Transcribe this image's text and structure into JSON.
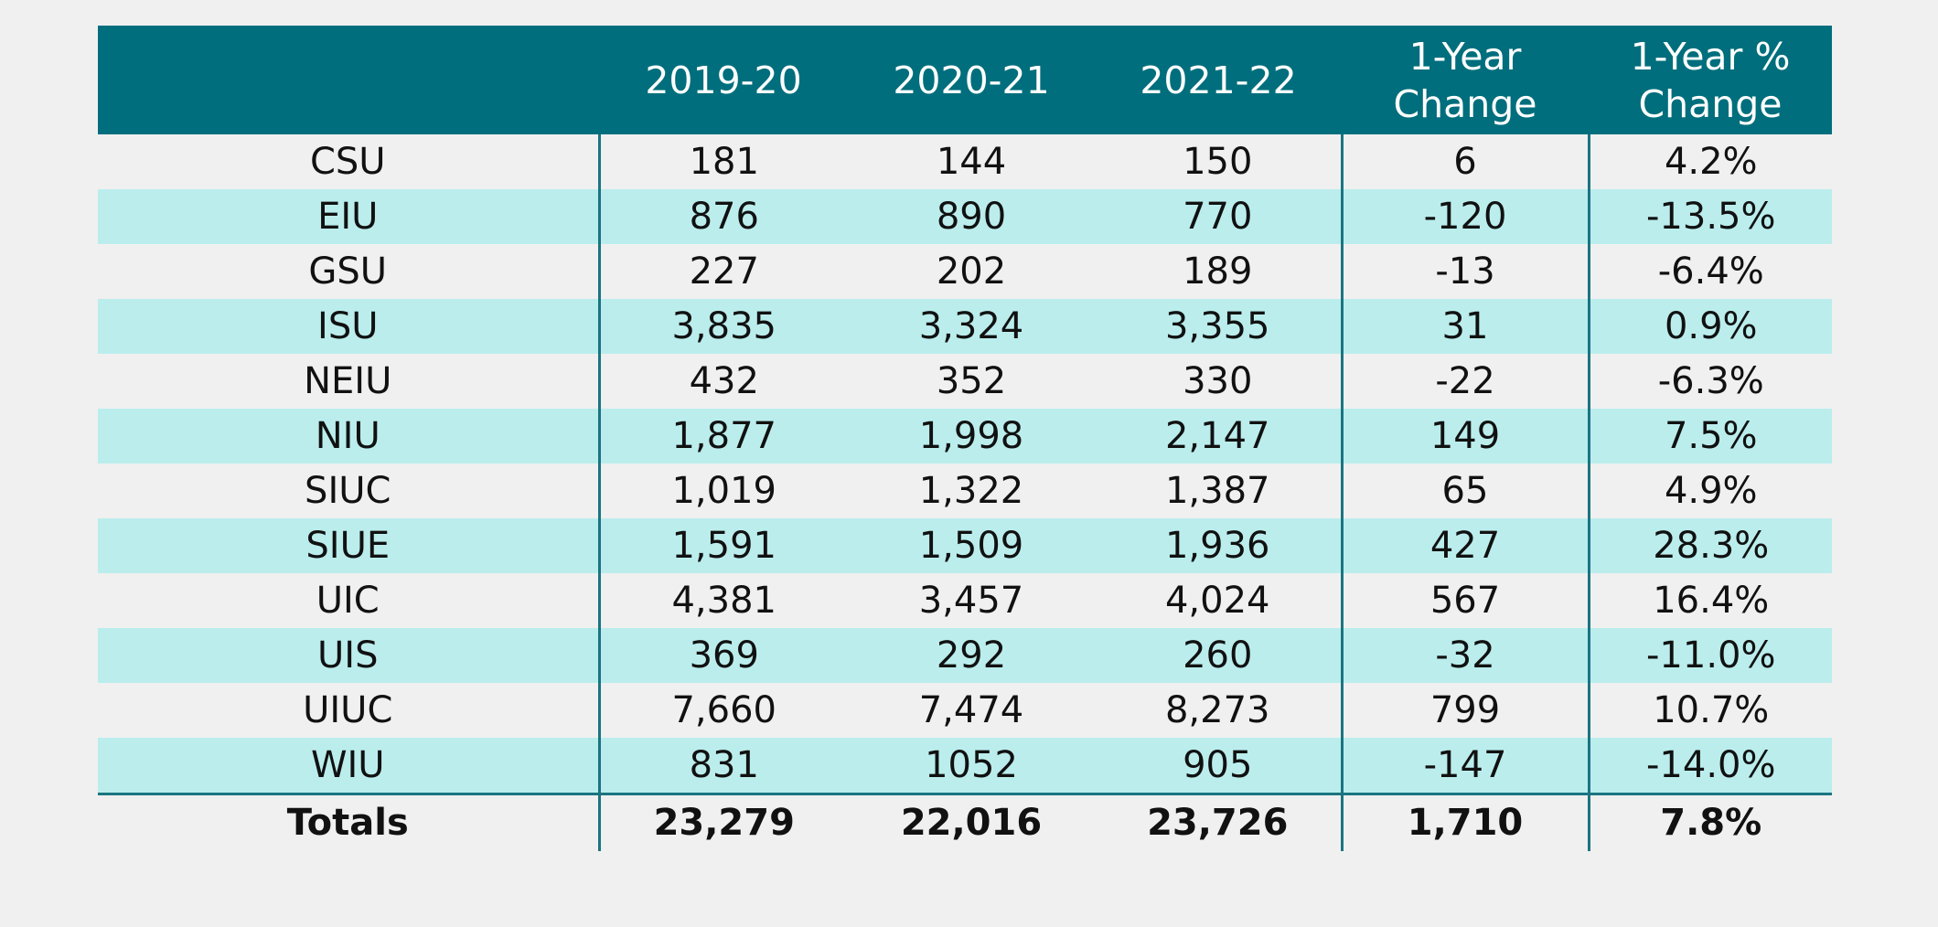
{
  "table": {
    "headers": [
      "",
      "2019-20",
      "2020-21",
      "2021-22",
      "1-Year Change",
      "1-Year % Change"
    ],
    "header_lines": {
      "change": [
        "1-Year",
        "Change"
      ],
      "pct_change": [
        "1-Year %",
        "Change"
      ]
    },
    "rows": [
      {
        "name": "CSU",
        "y1920": "181",
        "y2021": "144",
        "y2122": "150",
        "change": "6",
        "pct": "4.2%"
      },
      {
        "name": "EIU",
        "y1920": "876",
        "y2021": "890",
        "y2122": "770",
        "change": "-120",
        "pct": "-13.5%"
      },
      {
        "name": "GSU",
        "y1920": "227",
        "y2021": "202",
        "y2122": "189",
        "change": "-13",
        "pct": "-6.4%"
      },
      {
        "name": "ISU",
        "y1920": "3,835",
        "y2021": "3,324",
        "y2122": "3,355",
        "change": "31",
        "pct": "0.9%"
      },
      {
        "name": "NEIU",
        "y1920": "432",
        "y2021": "352",
        "y2122": "330",
        "change": "-22",
        "pct": "-6.3%"
      },
      {
        "name": "NIU",
        "y1920": "1,877",
        "y2021": "1,998",
        "y2122": "2,147",
        "change": "149",
        "pct": "7.5%"
      },
      {
        "name": "SIUC",
        "y1920": "1,019",
        "y2021": "1,322",
        "y2122": "1,387",
        "change": "65",
        "pct": "4.9%"
      },
      {
        "name": "SIUE",
        "y1920": "1,591",
        "y2021": "1,509",
        "y2122": "1,936",
        "change": "427",
        "pct": "28.3%"
      },
      {
        "name": "UIC",
        "y1920": "4,381",
        "y2021": "3,457",
        "y2122": "4,024",
        "change": "567",
        "pct": "16.4%"
      },
      {
        "name": "UIS",
        "y1920": "369",
        "y2021": "292",
        "y2122": "260",
        "change": "-32",
        "pct": "-11.0%"
      },
      {
        "name": "UIUC",
        "y1920": "7,660",
        "y2021": "7,474",
        "y2122": "8,273",
        "change": "799",
        "pct": "10.7%"
      },
      {
        "name": "WIU",
        "y1920": "831",
        "y2021": "1052",
        "y2122": "905",
        "change": "-147",
        "pct": "-14.0%"
      }
    ],
    "totals": {
      "name": "Totals",
      "y1920": "23,279",
      "y2021": "22,016",
      "y2122": "23,726",
      "change": "1,710",
      "pct": "7.8%"
    }
  },
  "colors": {
    "header_bg": "#006e7c",
    "header_text": "#ffffff",
    "row_shade": "#bbeded",
    "page_bg": "#f0f0f0",
    "rule": "#1a7580"
  }
}
